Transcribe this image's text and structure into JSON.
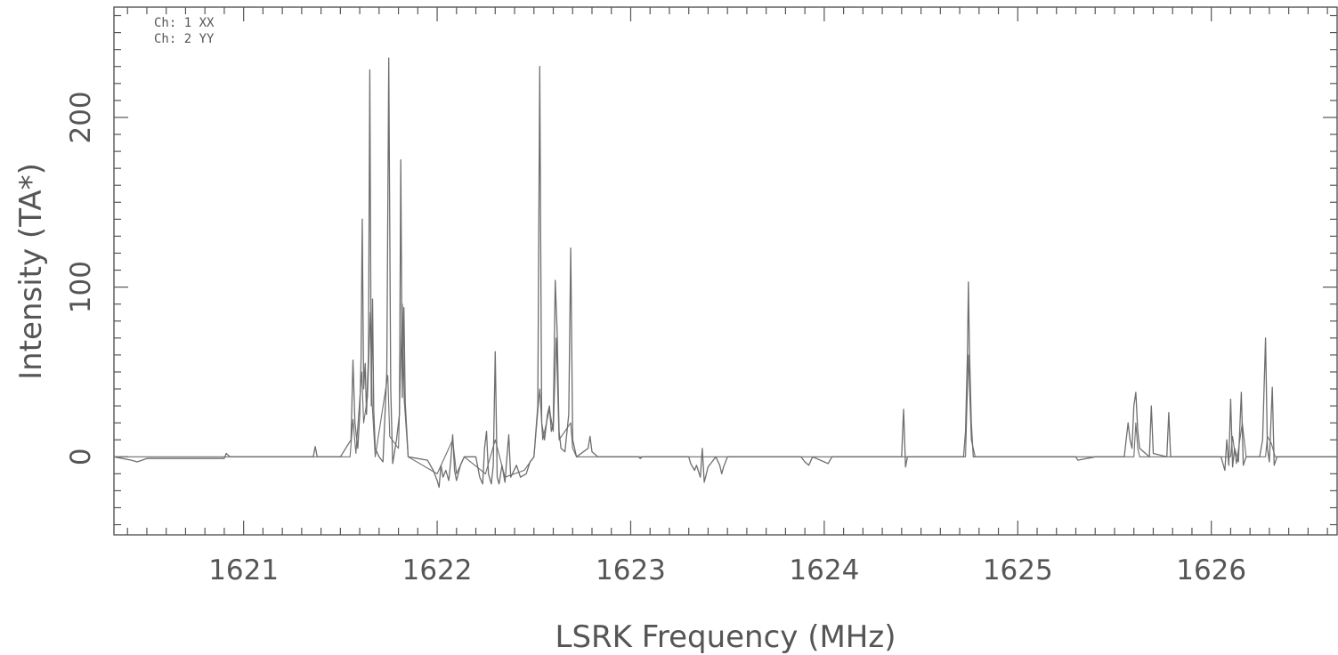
{
  "chart_data": {
    "type": "line",
    "title": "",
    "xlabel": "LSRK Frequency (MHz)",
    "ylabel": "Intensity (TA*)",
    "xlim": [
      1620.33,
      1626.65
    ],
    "ylim": [
      -46,
      265
    ],
    "x_ticks": [
      1621,
      1622,
      1623,
      1624,
      1625,
      1626
    ],
    "y_ticks": [
      0,
      100,
      200
    ],
    "grid": false,
    "legend_position": "top-left",
    "legend": [
      "Ch: 1 XX",
      "Ch: 2 YY"
    ],
    "line_color": "#6e6e6e",
    "series": [
      {
        "name": "Ch: 1 XX",
        "points": [
          [
            1620.33,
            0
          ],
          [
            1620.42,
            -2
          ],
          [
            1620.45,
            -3
          ],
          [
            1620.5,
            -1
          ],
          [
            1620.9,
            -1
          ],
          [
            1620.91,
            2
          ],
          [
            1620.93,
            0
          ],
          [
            1621.3,
            0
          ],
          [
            1621.36,
            0
          ],
          [
            1621.37,
            6
          ],
          [
            1621.38,
            0
          ],
          [
            1621.5,
            0
          ],
          [
            1621.555,
            10
          ],
          [
            1621.565,
            57
          ],
          [
            1621.575,
            20
          ],
          [
            1621.59,
            5
          ],
          [
            1621.6,
            25
          ],
          [
            1621.607,
            58
          ],
          [
            1621.613,
            140
          ],
          [
            1621.62,
            40
          ],
          [
            1621.628,
            55
          ],
          [
            1621.635,
            25
          ],
          [
            1621.645,
            60
          ],
          [
            1621.652,
            228
          ],
          [
            1621.66,
            30
          ],
          [
            1621.666,
            93
          ],
          [
            1621.672,
            28
          ],
          [
            1621.68,
            5
          ],
          [
            1621.7,
            0
          ],
          [
            1621.72,
            -3
          ],
          [
            1621.74,
            50
          ],
          [
            1621.75,
            235
          ],
          [
            1621.76,
            40
          ],
          [
            1621.77,
            -4
          ],
          [
            1621.79,
            10
          ],
          [
            1621.805,
            25
          ],
          [
            1621.812,
            175
          ],
          [
            1621.82,
            35
          ],
          [
            1621.828,
            88
          ],
          [
            1621.835,
            32
          ],
          [
            1621.85,
            0
          ],
          [
            1621.95,
            -2
          ],
          [
            1621.98,
            -8
          ],
          [
            1622.0,
            -14
          ],
          [
            1622.01,
            -18
          ],
          [
            1622.02,
            -5
          ],
          [
            1622.03,
            -12
          ],
          [
            1622.045,
            -8
          ],
          [
            1622.06,
            -14
          ],
          [
            1622.07,
            -3
          ],
          [
            1622.08,
            13
          ],
          [
            1622.09,
            -8
          ],
          [
            1622.1,
            -14
          ],
          [
            1622.12,
            -5
          ],
          [
            1622.14,
            0
          ],
          [
            1622.2,
            0
          ],
          [
            1622.22,
            -12
          ],
          [
            1622.235,
            -16
          ],
          [
            1622.245,
            5
          ],
          [
            1622.255,
            15
          ],
          [
            1622.265,
            -10
          ],
          [
            1622.28,
            -16
          ],
          [
            1622.29,
            -5
          ],
          [
            1622.3,
            62
          ],
          [
            1622.31,
            -12
          ],
          [
            1622.32,
            -16
          ],
          [
            1622.335,
            -5
          ],
          [
            1622.35,
            -15
          ],
          [
            1622.37,
            13
          ],
          [
            1622.38,
            -12
          ],
          [
            1622.41,
            -5
          ],
          [
            1622.43,
            -12
          ],
          [
            1622.46,
            -10
          ],
          [
            1622.48,
            -3
          ],
          [
            1622.5,
            0
          ],
          [
            1622.52,
            30
          ],
          [
            1622.53,
            230
          ],
          [
            1622.54,
            20
          ],
          [
            1622.555,
            10
          ],
          [
            1622.57,
            25
          ],
          [
            1622.58,
            30
          ],
          [
            1622.59,
            15
          ],
          [
            1622.6,
            20
          ],
          [
            1622.61,
            104
          ],
          [
            1622.62,
            73
          ],
          [
            1622.63,
            15
          ],
          [
            1622.64,
            5
          ],
          [
            1622.66,
            3
          ],
          [
            1622.68,
            25
          ],
          [
            1622.69,
            123
          ],
          [
            1622.7,
            10
          ],
          [
            1622.72,
            0
          ],
          [
            1622.78,
            5
          ],
          [
            1622.79,
            12
          ],
          [
            1622.8,
            3
          ],
          [
            1622.83,
            0
          ],
          [
            1623.04,
            0
          ],
          [
            1623.05,
            -1
          ],
          [
            1623.06,
            0
          ],
          [
            1623.3,
            0
          ],
          [
            1623.31,
            -4
          ],
          [
            1623.33,
            -8
          ],
          [
            1623.34,
            -5
          ],
          [
            1623.36,
            -12
          ],
          [
            1623.37,
            5
          ],
          [
            1623.38,
            -15
          ],
          [
            1623.4,
            -6
          ],
          [
            1623.42,
            -3
          ],
          [
            1623.44,
            0
          ],
          [
            1623.46,
            -5
          ],
          [
            1623.47,
            -10
          ],
          [
            1623.48,
            -6
          ],
          [
            1623.5,
            0
          ],
          [
            1623.88,
            0
          ],
          [
            1623.9,
            -3
          ],
          [
            1623.92,
            -5
          ],
          [
            1623.94,
            0
          ],
          [
            1624.02,
            -4
          ],
          [
            1624.04,
            0
          ],
          [
            1624.4,
            0
          ],
          [
            1624.41,
            28
          ],
          [
            1624.42,
            -6
          ],
          [
            1624.43,
            0
          ],
          [
            1624.72,
            0
          ],
          [
            1624.73,
            15
          ],
          [
            1624.74,
            62
          ],
          [
            1624.745,
            103
          ],
          [
            1624.75,
            65
          ],
          [
            1624.76,
            20
          ],
          [
            1624.77,
            0
          ],
          [
            1625.3,
            0
          ],
          [
            1625.31,
            -2
          ],
          [
            1625.4,
            0
          ],
          [
            1625.55,
            0
          ],
          [
            1625.57,
            20
          ],
          [
            1625.58,
            10
          ],
          [
            1625.59,
            5
          ],
          [
            1625.6,
            30
          ],
          [
            1625.61,
            38
          ],
          [
            1625.62,
            15
          ],
          [
            1625.63,
            5
          ],
          [
            1625.68,
            0
          ],
          [
            1625.69,
            30
          ],
          [
            1625.7,
            2
          ],
          [
            1625.77,
            0
          ],
          [
            1625.78,
            26
          ],
          [
            1625.79,
            0
          ],
          [
            1626.05,
            0
          ],
          [
            1626.07,
            -8
          ],
          [
            1626.08,
            10
          ],
          [
            1626.09,
            -5
          ],
          [
            1626.1,
            34
          ],
          [
            1626.11,
            -6
          ],
          [
            1626.12,
            5
          ],
          [
            1626.14,
            -3
          ],
          [
            1626.155,
            38
          ],
          [
            1626.165,
            -5
          ],
          [
            1626.18,
            0
          ],
          [
            1626.25,
            0
          ],
          [
            1626.265,
            10
          ],
          [
            1626.28,
            70
          ],
          [
            1626.29,
            5
          ],
          [
            1626.3,
            -3
          ],
          [
            1626.315,
            41
          ],
          [
            1626.325,
            -5
          ],
          [
            1626.34,
            0
          ],
          [
            1626.65,
            0
          ]
        ]
      },
      {
        "name": "Ch: 2 YY",
        "points": [
          [
            1620.33,
            0
          ],
          [
            1621.55,
            0
          ],
          [
            1621.565,
            22
          ],
          [
            1621.58,
            2
          ],
          [
            1621.61,
            50
          ],
          [
            1621.62,
            20
          ],
          [
            1621.64,
            35
          ],
          [
            1621.655,
            85
          ],
          [
            1621.665,
            30
          ],
          [
            1621.68,
            0
          ],
          [
            1621.745,
            48
          ],
          [
            1621.755,
            12
          ],
          [
            1621.8,
            5
          ],
          [
            1621.82,
            90
          ],
          [
            1621.83,
            33
          ],
          [
            1621.85,
            0
          ],
          [
            1622.0,
            -10
          ],
          [
            1622.08,
            10
          ],
          [
            1622.1,
            -10
          ],
          [
            1622.14,
            0
          ],
          [
            1622.25,
            -10
          ],
          [
            1622.3,
            10
          ],
          [
            1622.35,
            -12
          ],
          [
            1622.45,
            -8
          ],
          [
            1622.5,
            0
          ],
          [
            1622.53,
            40
          ],
          [
            1622.545,
            10
          ],
          [
            1622.58,
            28
          ],
          [
            1622.6,
            15
          ],
          [
            1622.615,
            70
          ],
          [
            1622.63,
            10
          ],
          [
            1622.69,
            20
          ],
          [
            1622.7,
            5
          ],
          [
            1622.72,
            0
          ],
          [
            1624.73,
            0
          ],
          [
            1624.745,
            60
          ],
          [
            1624.76,
            10
          ],
          [
            1624.78,
            0
          ],
          [
            1625.6,
            0
          ],
          [
            1625.61,
            20
          ],
          [
            1625.62,
            5
          ],
          [
            1625.63,
            0
          ],
          [
            1626.1,
            0
          ],
          [
            1626.11,
            12
          ],
          [
            1626.13,
            -4
          ],
          [
            1626.16,
            20
          ],
          [
            1626.18,
            0
          ],
          [
            1626.28,
            0
          ],
          [
            1626.29,
            12
          ],
          [
            1626.31,
            8
          ],
          [
            1626.33,
            0
          ],
          [
            1626.65,
            0
          ]
        ]
      }
    ]
  }
}
